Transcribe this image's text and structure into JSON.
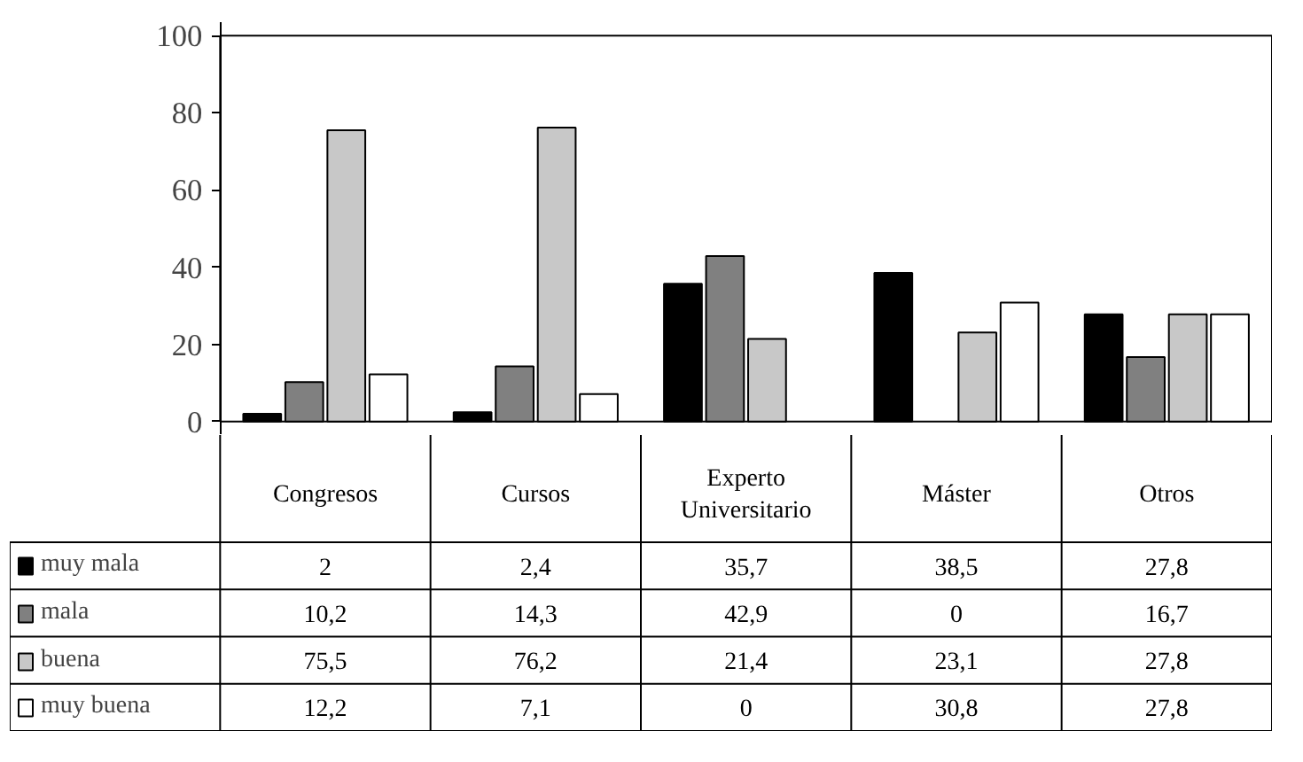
{
  "chart_data": {
    "type": "bar",
    "categories": [
      "Congresos",
      "Cursos",
      "Experto Universitario",
      "Máster",
      "Otros"
    ],
    "series": [
      {
        "name": "muy mala",
        "color": "#000000",
        "values": [
          2,
          2.4,
          35.7,
          38.5,
          27.8
        ],
        "value_labels": [
          "2",
          "2,4",
          "35,7",
          "38,5",
          "27,8"
        ]
      },
      {
        "name": "mala",
        "color": "#808080",
        "values": [
          10.2,
          14.3,
          42.9,
          0,
          16.7
        ],
        "value_labels": [
          "10,2",
          "14,3",
          "42,9",
          "0",
          "16,7"
        ]
      },
      {
        "name": "buena",
        "color": "#c8c8c8",
        "values": [
          75.5,
          76.2,
          21.4,
          23.1,
          27.8
        ],
        "value_labels": [
          "75,5",
          "76,2",
          "21,4",
          "23,1",
          "27,8"
        ]
      },
      {
        "name": "muy buena",
        "color": "#ffffff",
        "values": [
          12.2,
          7.1,
          0,
          30.8,
          27.8
        ],
        "value_labels": [
          "12,2",
          "7,1",
          "0",
          "30,8",
          "27,8"
        ]
      }
    ],
    "ylim": [
      0,
      100
    ],
    "yticks": [
      0,
      20,
      40,
      60,
      80,
      100
    ],
    "grid": false,
    "legend": "bottom"
  }
}
